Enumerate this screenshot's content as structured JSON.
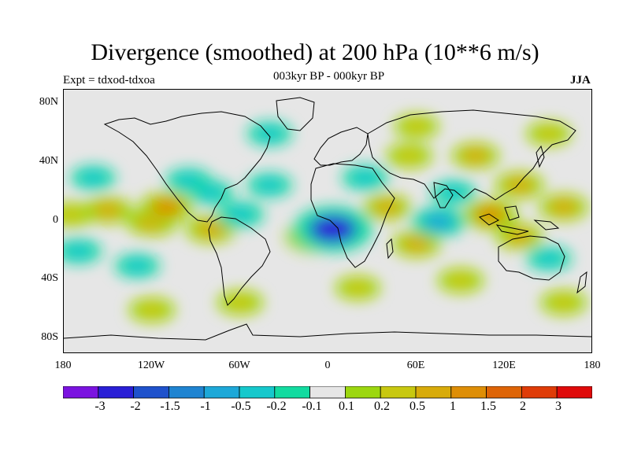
{
  "title": "Divergence (smoothed) at 200 hPa (10**6 m/s)",
  "subtitle": "003kyr BP - 000kyr BP",
  "experiment": "Expt = tdxod-tdxoa",
  "season": "JJA",
  "map": {
    "projection": "cylindrical equidistant",
    "lon_range": [
      -180,
      180
    ],
    "lat_range": [
      -90,
      90
    ],
    "background_color": "#e6e6e6",
    "coastline_color": "#000000"
  },
  "lat_ticks": [
    {
      "value": 80,
      "label": "80N"
    },
    {
      "value": 40,
      "label": "40N"
    },
    {
      "value": 0,
      "label": "0"
    },
    {
      "value": -40,
      "label": "40S"
    },
    {
      "value": -80,
      "label": "80S"
    }
  ],
  "lon_ticks": [
    {
      "value": -180,
      "label": "180"
    },
    {
      "value": -120,
      "label": "120W"
    },
    {
      "value": -60,
      "label": "60W"
    },
    {
      "value": 0,
      "label": "0"
    },
    {
      "value": 60,
      "label": "60E"
    },
    {
      "value": 120,
      "label": "120E"
    },
    {
      "value": 180,
      "label": "180"
    }
  ],
  "colorbar": {
    "colors": [
      "#7b13e0",
      "#2a1fd6",
      "#1f52cc",
      "#1f84d1",
      "#1da8d8",
      "#16c8cc",
      "#12dba0",
      "#e6e6e6",
      "#9cd70f",
      "#c8c810",
      "#d8ab0a",
      "#de8e06",
      "#de6406",
      "#df3c08",
      "#df0a0a"
    ],
    "labels": [
      "-3",
      "-2",
      "-1.5",
      "-1",
      "-0.5",
      "-0.2",
      "-0.1",
      "0.1",
      "0.2",
      "0.5",
      "1",
      "1.5",
      "2",
      "3"
    ]
  },
  "anomaly_fields": [
    {
      "lon": -175,
      "lat": 5,
      "value": 0.4
    },
    {
      "lon": -150,
      "lat": 8,
      "value": 0.6
    },
    {
      "lon": -160,
      "lat": 30,
      "value": -0.3
    },
    {
      "lon": -120,
      "lat": 0,
      "value": 0.8
    },
    {
      "lon": -110,
      "lat": 10,
      "value": 1.0
    },
    {
      "lon": -95,
      "lat": 28,
      "value": -0.4
    },
    {
      "lon": -80,
      "lat": 20,
      "value": -0.3
    },
    {
      "lon": -80,
      "lat": -5,
      "value": 0.7
    },
    {
      "lon": -60,
      "lat": 5,
      "value": -0.5
    },
    {
      "lon": -40,
      "lat": 25,
      "value": -0.3
    },
    {
      "lon": -10,
      "lat": -10,
      "value": 1.2
    },
    {
      "lon": 3,
      "lat": -5,
      "value": -3.0
    },
    {
      "lon": 25,
      "lat": 30,
      "value": -0.4
    },
    {
      "lon": 40,
      "lat": 10,
      "value": 0.5
    },
    {
      "lon": 55,
      "lat": 45,
      "value": 0.4
    },
    {
      "lon": 60,
      "lat": -15,
      "value": 0.6
    },
    {
      "lon": 75,
      "lat": 0,
      "value": -1.0
    },
    {
      "lon": 85,
      "lat": 20,
      "value": -0.3
    },
    {
      "lon": 100,
      "lat": 45,
      "value": 0.5
    },
    {
      "lon": 110,
      "lat": 5,
      "value": 1.0
    },
    {
      "lon": 130,
      "lat": 25,
      "value": 0.6
    },
    {
      "lon": 130,
      "lat": -10,
      "value": 0.5
    },
    {
      "lon": 160,
      "lat": 10,
      "value": 0.6
    },
    {
      "lon": 150,
      "lat": -25,
      "value": -0.3
    },
    {
      "lon": -170,
      "lat": -20,
      "value": -0.4
    },
    {
      "lon": -130,
      "lat": -30,
      "value": -0.3
    },
    {
      "lon": -120,
      "lat": -60,
      "value": 0.4
    },
    {
      "lon": -60,
      "lat": -55,
      "value": 0.4
    },
    {
      "lon": 20,
      "lat": -45,
      "value": 0.3
    },
    {
      "lon": 90,
      "lat": -40,
      "value": 0.4
    },
    {
      "lon": 160,
      "lat": -55,
      "value": 0.4
    },
    {
      "lon": -40,
      "lat": 60,
      "value": -0.3
    },
    {
      "lon": 60,
      "lat": 65,
      "value": 0.3
    },
    {
      "lon": 150,
      "lat": 60,
      "value": 0.3
    }
  ]
}
